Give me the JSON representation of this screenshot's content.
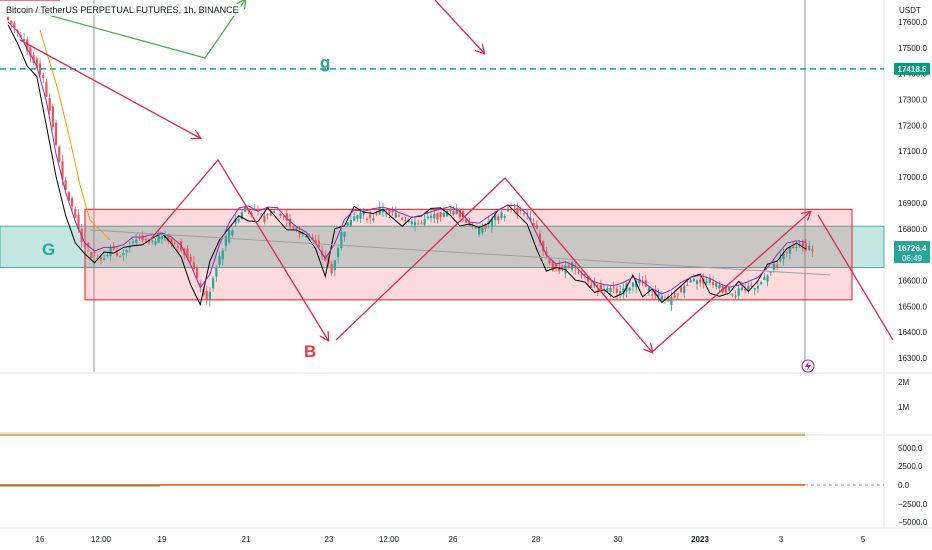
{
  "header": {
    "title": "Bitcoin / TetherUS PERPETUAL FUTURES, 1h, BINANCE",
    "currency": "USDT"
  },
  "chart_data": {
    "type": "candlestick",
    "ylim": [
      16200,
      17700
    ],
    "price_ticks": [
      "17600.0",
      "17500.0",
      "17400.0",
      "17300.0",
      "17200.0",
      "17100.0",
      "17000.0",
      "16900.0",
      "16800.0",
      "16700.0",
      "16600.0",
      "16500.0",
      "16400.0",
      "16300.0"
    ],
    "volume_ticks": [
      "2M",
      "1M"
    ],
    "osc_ticks": [
      "5000.0",
      "2500.0",
      "0.0",
      "−2500.0",
      "−5000.0"
    ],
    "x_ticks": [
      "16",
      "12:00",
      "19",
      "21",
      "23",
      "12:00",
      "26",
      "28",
      "30",
      "2023",
      "3",
      "5"
    ],
    "current_price": "16726.4",
    "countdown": "06:49",
    "level_tag": "17418.5",
    "level_price": 17418.5,
    "zone_G": [
      16650,
      16810
    ],
    "range_box": [
      16525,
      16875
    ],
    "labels": {
      "G": "G",
      "g": "g",
      "B": "B"
    },
    "closes": [
      17580,
      17520,
      17450,
      17380,
      17200,
      16980,
      16880,
      16760,
      16700,
      16690,
      16720,
      16700,
      16730,
      16760,
      16740,
      16770,
      16760,
      16740,
      16700,
      16600,
      16520,
      16660,
      16760,
      16830,
      16880,
      16860,
      16840,
      16880,
      16850,
      16800,
      16780,
      16760,
      16700,
      16640,
      16780,
      16840,
      16860,
      16840,
      16870,
      16860,
      16850,
      16830,
      16820,
      16840,
      16850,
      16860,
      16870,
      16830,
      16790,
      16810,
      16840,
      16860,
      16880,
      16860,
      16820,
      16720,
      16650,
      16640,
      16660,
      16620,
      16580,
      16570,
      16560,
      16560,
      16580,
      16600,
      16560,
      16540,
      16520,
      16560,
      16580,
      16600,
      16600,
      16580,
      16560,
      16550,
      16570,
      16580,
      16600,
      16650,
      16700,
      16740,
      16730,
      16726
    ]
  },
  "colors": {
    "up": "#26a69a",
    "down": "#ef5350",
    "zone_g": "#26a69a",
    "range_box": "#f23645",
    "arrow_red": "#e0284a",
    "arrow_green": "#4caf50",
    "level_line": "#089981"
  }
}
